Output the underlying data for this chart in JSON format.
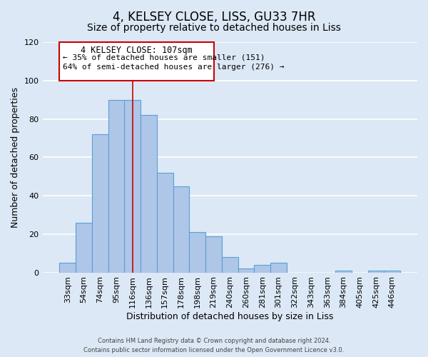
{
  "title": "4, KELSEY CLOSE, LISS, GU33 7HR",
  "subtitle": "Size of property relative to detached houses in Liss",
  "xlabel": "Distribution of detached houses by size in Liss",
  "ylabel": "Number of detached properties",
  "bar_color": "#aec6e8",
  "bar_edge_color": "#5a9fd4",
  "categories": [
    "33sqm",
    "54sqm",
    "74sqm",
    "95sqm",
    "116sqm",
    "136sqm",
    "157sqm",
    "178sqm",
    "198sqm",
    "219sqm",
    "240sqm",
    "260sqm",
    "281sqm",
    "301sqm",
    "322sqm",
    "343sqm",
    "363sqm",
    "384sqm",
    "405sqm",
    "425sqm",
    "446sqm"
  ],
  "values": [
    5,
    26,
    72,
    90,
    90,
    82,
    52,
    45,
    21,
    19,
    8,
    2,
    4,
    5,
    0,
    0,
    0,
    1,
    0,
    1,
    1
  ],
  "ylim": [
    0,
    120
  ],
  "yticks": [
    0,
    20,
    40,
    60,
    80,
    100,
    120
  ],
  "annotation_title": "4 KELSEY CLOSE: 107sqm",
  "annotation_line1": "← 35% of detached houses are smaller (151)",
  "annotation_line2": "64% of semi-detached houses are larger (276) →",
  "annotation_box_color": "#ffffff",
  "annotation_box_edge_color": "#cc0000",
  "footer_line1": "Contains HM Land Registry data © Crown copyright and database right 2024.",
  "footer_line2": "Contains public sector information licensed under the Open Government Licence v3.0.",
  "background_color": "#dce8f5",
  "grid_color": "#ffffff",
  "title_fontsize": 12,
  "subtitle_fontsize": 10,
  "axis_label_fontsize": 9,
  "tick_fontsize": 8
}
